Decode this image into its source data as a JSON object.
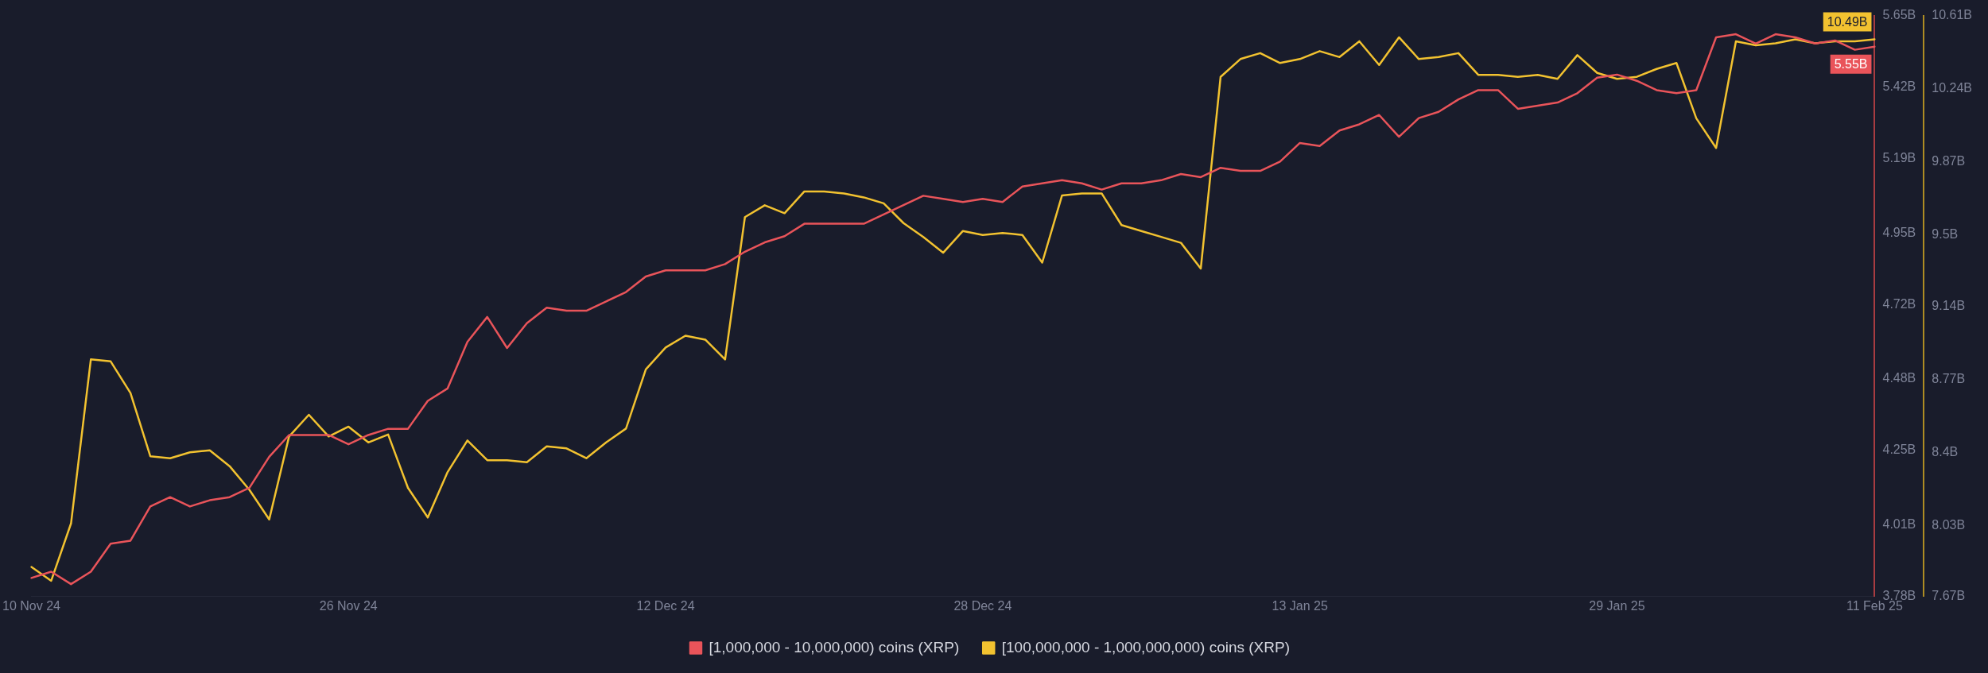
{
  "chart_data": {
    "type": "line",
    "categories": [
      "10 Nov 24",
      null,
      null,
      null,
      null,
      null,
      null,
      null,
      null,
      null,
      null,
      null,
      null,
      null,
      null,
      null,
      "26 Nov 24",
      null,
      null,
      null,
      null,
      null,
      null,
      null,
      null,
      null,
      null,
      null,
      null,
      null,
      null,
      null,
      "12 Dec 24",
      null,
      null,
      null,
      null,
      null,
      null,
      null,
      null,
      null,
      null,
      null,
      null,
      null,
      null,
      null,
      "28 Dec 24",
      null,
      null,
      null,
      null,
      null,
      null,
      null,
      null,
      null,
      null,
      null,
      null,
      null,
      null,
      null,
      "13 Jan 25",
      null,
      null,
      null,
      null,
      null,
      null,
      null,
      null,
      null,
      null,
      null,
      null,
      null,
      null,
      null,
      "29 Jan 25",
      null,
      null,
      null,
      null,
      null,
      null,
      null,
      null,
      null,
      null,
      null,
      null,
      "11 Feb 25"
    ],
    "series": [
      {
        "name": "[1,000,000 - 10,000,000) coins (XRP)",
        "color": "#e9545a",
        "axis": "y",
        "values": [
          3.84,
          3.86,
          3.82,
          3.86,
          3.95,
          3.96,
          4.07,
          4.1,
          4.07,
          4.09,
          4.1,
          4.13,
          4.23,
          4.3,
          4.3,
          4.3,
          4.27,
          4.3,
          4.32,
          4.32,
          4.41,
          4.45,
          4.6,
          4.68,
          4.58,
          4.66,
          4.71,
          4.7,
          4.7,
          4.73,
          4.76,
          4.81,
          4.83,
          4.83,
          4.83,
          4.85,
          4.89,
          4.92,
          4.94,
          4.98,
          4.98,
          4.98,
          4.98,
          5.01,
          5.04,
          5.07,
          5.06,
          5.05,
          5.06,
          5.05,
          5.1,
          5.11,
          5.12,
          5.11,
          5.09,
          5.11,
          5.11,
          5.12,
          5.14,
          5.13,
          5.16,
          5.15,
          5.15,
          5.18,
          5.24,
          5.23,
          5.28,
          5.3,
          5.33,
          5.26,
          5.32,
          5.34,
          5.38,
          5.41,
          5.41,
          5.35,
          5.36,
          5.37,
          5.4,
          5.45,
          5.46,
          5.44,
          5.41,
          5.4,
          5.41,
          5.58,
          5.59,
          5.56,
          5.59,
          5.58,
          5.56,
          5.57,
          5.54,
          5.55
        ],
        "value_labels": [
          null,
          null,
          null,
          null,
          null,
          null,
          null,
          null,
          null,
          null,
          null,
          null,
          null,
          null,
          null,
          null,
          null,
          null,
          null,
          null,
          null,
          null,
          null,
          null,
          null,
          null,
          null,
          null,
          null,
          null,
          null,
          null,
          null,
          null,
          null,
          null,
          null,
          null,
          null,
          null,
          null,
          null,
          null,
          null,
          null,
          null,
          null,
          null,
          null,
          null,
          null,
          null,
          null,
          null,
          null,
          null,
          null,
          null,
          null,
          null,
          null,
          null,
          null,
          null,
          null,
          null,
          null,
          null,
          null,
          null,
          null,
          null,
          null,
          null,
          null,
          null,
          null,
          null,
          null,
          null,
          null,
          null,
          null,
          null,
          null,
          null,
          null,
          null,
          null,
          null,
          null,
          null,
          null,
          "5.55B"
        ]
      },
      {
        "name": "[100,000,000 - 1,000,000,000) coins (XRP)",
        "color": "#f2c230",
        "axis": "y2",
        "values": [
          7.82,
          7.75,
          8.04,
          8.87,
          8.86,
          8.7,
          8.38,
          8.37,
          8.4,
          8.41,
          8.33,
          8.21,
          8.06,
          8.48,
          8.59,
          8.48,
          8.53,
          8.45,
          8.49,
          8.22,
          8.07,
          8.3,
          8.46,
          8.36,
          8.36,
          8.35,
          8.43,
          8.42,
          8.37,
          8.45,
          8.52,
          8.82,
          8.93,
          8.99,
          8.97,
          8.87,
          9.59,
          9.65,
          9.61,
          9.72,
          9.72,
          9.71,
          9.69,
          9.66,
          9.56,
          9.49,
          9.41,
          9.52,
          9.5,
          9.51,
          9.5,
          9.36,
          9.7,
          9.71,
          9.71,
          9.55,
          9.52,
          9.49,
          9.46,
          9.33,
          10.3,
          10.39,
          10.42,
          10.37,
          10.39,
          10.43,
          10.4,
          10.48,
          10.36,
          10.5,
          10.39,
          10.4,
          10.42,
          10.31,
          10.31,
          10.3,
          10.31,
          10.29,
          10.41,
          10.32,
          10.29,
          10.3,
          10.34,
          10.37,
          10.09,
          9.94,
          10.48,
          10.46,
          10.47,
          10.49,
          10.47,
          10.48,
          10.48,
          10.49
        ],
        "value_labels": [
          null,
          null,
          null,
          null,
          null,
          null,
          null,
          null,
          null,
          null,
          null,
          null,
          null,
          null,
          null,
          null,
          null,
          null,
          null,
          null,
          null,
          null,
          null,
          null,
          null,
          null,
          null,
          null,
          null,
          null,
          null,
          null,
          null,
          null,
          null,
          null,
          null,
          null,
          null,
          null,
          null,
          null,
          null,
          null,
          null,
          null,
          null,
          null,
          null,
          null,
          null,
          null,
          null,
          null,
          null,
          null,
          null,
          null,
          null,
          null,
          null,
          null,
          null,
          null,
          null,
          null,
          null,
          null,
          null,
          null,
          null,
          null,
          null,
          null,
          null,
          null,
          null,
          null,
          null,
          null,
          null,
          null,
          null,
          null,
          null,
          null,
          null,
          null,
          null,
          null,
          null,
          null,
          null,
          "10.49B"
        ]
      }
    ],
    "ylim": [
      3.78,
      5.65
    ],
    "yticks": [
      {
        "value": 3.78,
        "label": "3.78B"
      },
      {
        "value": 4.01,
        "label": "4.01B"
      },
      {
        "value": 4.25,
        "label": "4.25B"
      },
      {
        "value": 4.48,
        "label": "4.48B"
      },
      {
        "value": 4.72,
        "label": "4.72B"
      },
      {
        "value": 4.95,
        "label": "4.95B"
      },
      {
        "value": 5.19,
        "label": "5.19B"
      },
      {
        "value": 5.42,
        "label": "5.42B"
      },
      {
        "value": 5.65,
        "label": "5.65B"
      }
    ],
    "y2lim": [
      7.67,
      10.61
    ],
    "y2ticks": [
      {
        "value": 7.67,
        "label": "7.67B"
      },
      {
        "value": 8.03,
        "label": "8.03B"
      },
      {
        "value": 8.4,
        "label": "8.4B"
      },
      {
        "value": 8.77,
        "label": "8.77B"
      },
      {
        "value": 9.14,
        "label": "9.14B"
      },
      {
        "value": 9.5,
        "label": "9.5B"
      },
      {
        "value": 9.87,
        "label": "9.87B"
      },
      {
        "value": 10.24,
        "label": "10.24B"
      },
      {
        "value": 10.61,
        "label": "10.61B"
      }
    ],
    "legend": "bottom",
    "marker": "none"
  }
}
